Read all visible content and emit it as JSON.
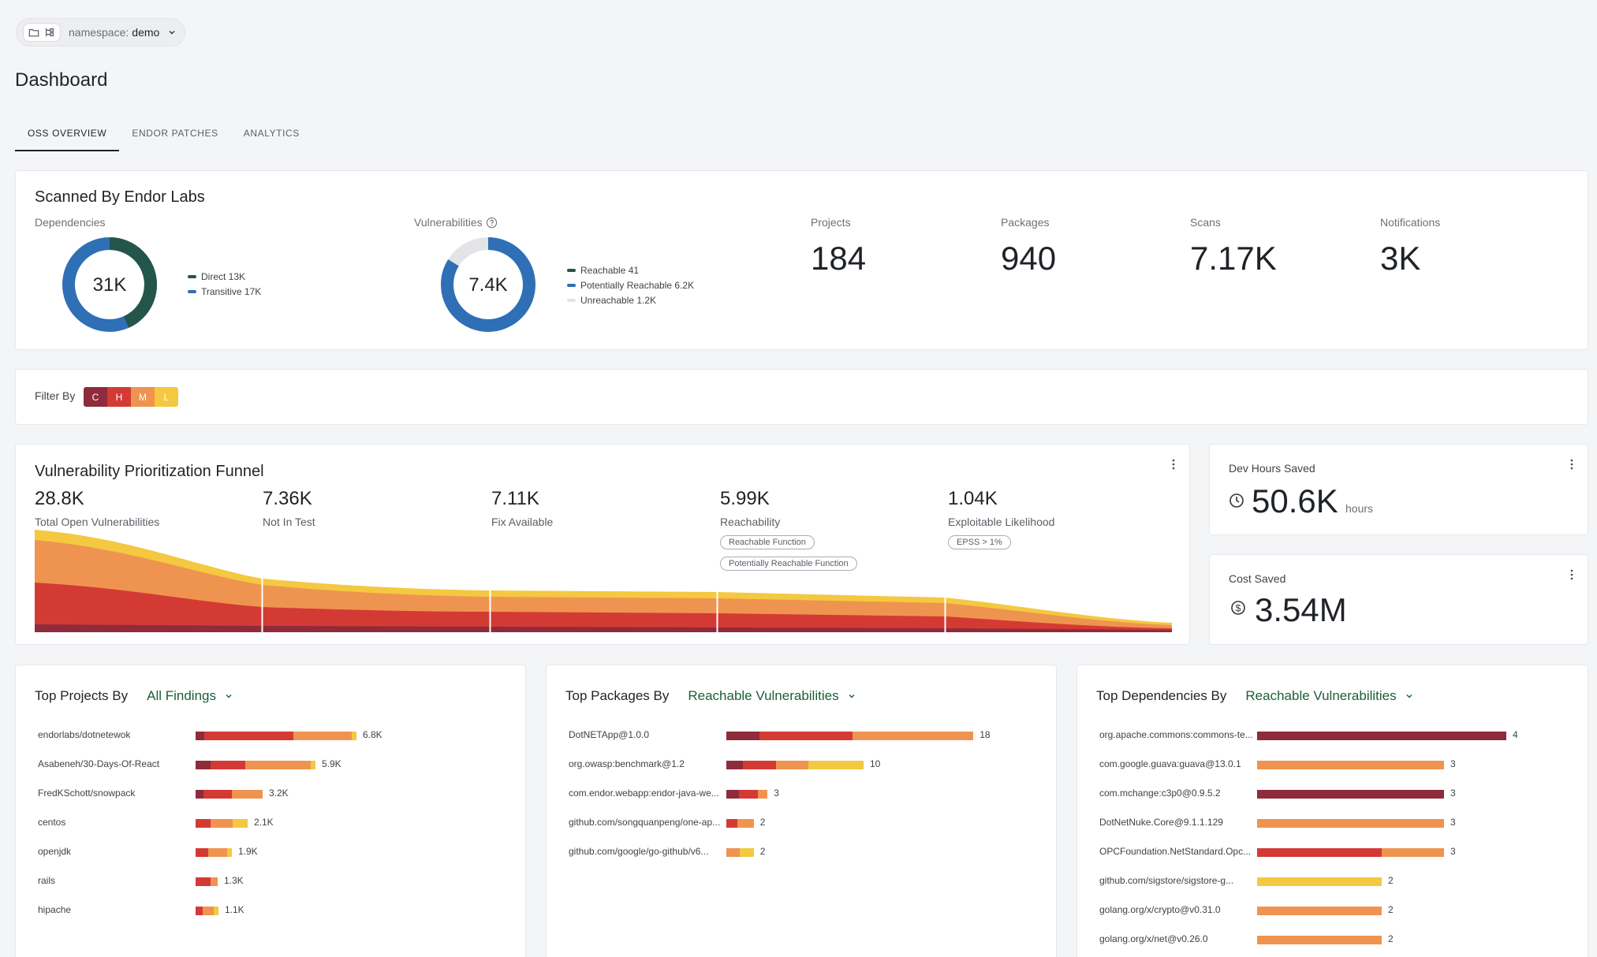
{
  "namespace": {
    "label": "namespace:",
    "value": "demo"
  },
  "page_title": "Dashboard",
  "tabs": [
    {
      "label": "OSS OVERVIEW",
      "active": true
    },
    {
      "label": "ENDOR PATCHES",
      "active": false
    },
    {
      "label": "ANALYTICS",
      "active": false
    }
  ],
  "colors": {
    "critical": "#8e2b3c",
    "high": "#d43a34",
    "medium": "#ef9450",
    "low": "#f4c840",
    "direct": "#24554a",
    "transitive": "#2f6fb5",
    "unreachable": "#e3e4e6"
  },
  "scanned": {
    "title": "Scanned By Endor Labs",
    "dependencies": {
      "label": "Dependencies",
      "center": "31K",
      "legend": [
        {
          "text": "Direct 13K",
          "value": 13
        },
        {
          "text": "Transitive 17K",
          "value": 17
        }
      ]
    },
    "vulnerabilities": {
      "label": "Vulnerabilities",
      "center": "7.4K",
      "legend": [
        {
          "text": "Reachable 41",
          "value": 41
        },
        {
          "text": "Potentially Reachable 6.2K",
          "value": 6200
        },
        {
          "text": "Unreachable 1.2K",
          "value": 1200
        }
      ]
    },
    "stats": [
      {
        "label": "Projects",
        "value": "184"
      },
      {
        "label": "Packages",
        "value": "940"
      },
      {
        "label": "Scans",
        "value": "7.17K"
      },
      {
        "label": "Notifications",
        "value": "3K"
      }
    ]
  },
  "filter": {
    "label": "Filter By",
    "levels": [
      "C",
      "H",
      "M",
      "L"
    ]
  },
  "funnel": {
    "title": "Vulnerability Prioritization Funnel",
    "stages": [
      {
        "value": "28.8K",
        "label": "Total Open Vulnerabilities",
        "pills": []
      },
      {
        "value": "7.36K",
        "label": "Not In Test",
        "pills": []
      },
      {
        "value": "7.11K",
        "label": "Fix Available",
        "pills": []
      },
      {
        "value": "5.99K",
        "label": "Reachability",
        "pills": [
          "Reachable Function",
          "Potentially Reachable Function"
        ]
      },
      {
        "value": "1.04K",
        "label": "Exploitable Likelihood",
        "pills": [
          "EPSS > 1%"
        ]
      }
    ]
  },
  "dev_hours": {
    "label": "Dev Hours Saved",
    "value": "50.6K",
    "unit": "hours"
  },
  "cost_saved": {
    "label": "Cost Saved",
    "value": "3.54M"
  },
  "top_projects": {
    "title": "Top Projects By",
    "selector": "All Findings",
    "rows": [
      {
        "name": "endorlabs/dotnetewok",
        "value": "6.8K",
        "segments": [
          0.11,
          1.13,
          0.74,
          0.06
        ]
      },
      {
        "name": "Asabeneh/30-Days-Of-React",
        "value": "5.9K",
        "segments": [
          0.19,
          0.44,
          0.83,
          0.06
        ]
      },
      {
        "name": "FredKSchott/snowpack",
        "value": "3.2K",
        "segments": [
          0.1,
          0.36,
          0.39,
          0
        ]
      },
      {
        "name": "centos",
        "value": "2.1K",
        "segments": [
          0,
          0.19,
          0.28,
          0.19
        ]
      },
      {
        "name": "openjdk",
        "value": "1.9K",
        "segments": [
          0,
          0.16,
          0.24,
          0.06
        ]
      },
      {
        "name": "rails",
        "value": "1.3K",
        "segments": [
          0,
          0.19,
          0.09,
          0
        ]
      },
      {
        "name": "hipache",
        "value": "1.1K",
        "segments": [
          0,
          0.09,
          0.14,
          0.06
        ]
      }
    ]
  },
  "top_packages": {
    "title": "Top Packages By",
    "selector": "Reachable Vulnerabilities",
    "rows": [
      {
        "name": "DotNETApp@1.0.0",
        "value": "18",
        "segments": [
          2.4,
          6.8,
          8.8,
          0
        ]
      },
      {
        "name": "org.owasp:benchmark@1.2",
        "value": "10",
        "segments": [
          1.2,
          2.4,
          2.4,
          4.0
        ]
      },
      {
        "name": "com.endor.webapp:endor-java-we...",
        "value": "3",
        "segments": [
          0.9,
          1.4,
          0.7,
          0
        ]
      },
      {
        "name": "github.com/songquanpeng/one-ap...",
        "value": "2",
        "segments": [
          0,
          0.8,
          1.2,
          0
        ]
      },
      {
        "name": "github.com/google/go-github/v6...",
        "value": "2",
        "segments": [
          0,
          0,
          1.0,
          1.0
        ]
      }
    ]
  },
  "top_dependencies": {
    "title": "Top Dependencies By",
    "selector": "Reachable Vulnerabilities",
    "rows": [
      {
        "name": "org.apache.commons:commons-te...",
        "value": "4",
        "segments": [
          4,
          0,
          0,
          0
        ]
      },
      {
        "name": "com.google.guava:guava@13.0.1",
        "value": "3",
        "segments": [
          0,
          0,
          3,
          0
        ]
      },
      {
        "name": "com.mchange:c3p0@0.9.5.2",
        "value": "3",
        "segments": [
          3,
          0,
          0,
          0
        ]
      },
      {
        "name": "DotNetNuke.Core@9.1.1.129",
        "value": "3",
        "segments": [
          0,
          0,
          3,
          0
        ]
      },
      {
        "name": "OPCFoundation.NetStandard.Opc...",
        "value": "3",
        "segments": [
          0,
          2,
          1,
          0
        ]
      },
      {
        "name": "github.com/sigstore/sigstore-g...",
        "value": "2",
        "segments": [
          0,
          0,
          0,
          2
        ]
      },
      {
        "name": "golang.org/x/crypto@v0.31.0",
        "value": "2",
        "segments": [
          0,
          0,
          2,
          0
        ]
      },
      {
        "name": "golang.org/x/net@v0.26.0",
        "value": "2",
        "segments": [
          0,
          0,
          2,
          0
        ]
      }
    ]
  }
}
